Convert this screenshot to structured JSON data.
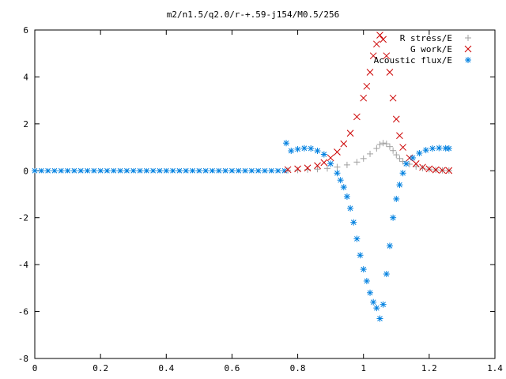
{
  "chart_data": {
    "type": "scatter",
    "title": "m2/n1.5/q2.0/r-+.59-j154/M0.5/256",
    "xlabel": "",
    "ylabel": "",
    "xlim": [
      0,
      1.4
    ],
    "ylim": [
      -8,
      6
    ],
    "x_ticks": [
      "0",
      "0.2",
      "0.4",
      "0.6",
      "0.8",
      "1",
      "1.2",
      "1.4"
    ],
    "y_ticks": [
      "6",
      "4",
      "2",
      "0",
      "-2",
      "-4",
      "-6",
      "-8"
    ],
    "grid": false,
    "legend_placement": "top-right",
    "series": [
      {
        "name": "R stress/E",
        "marker": "plus",
        "color": "#a0a0a0",
        "points": [
          [
            0.77,
            0.02
          ],
          [
            0.8,
            0.03
          ],
          [
            0.83,
            0.05
          ],
          [
            0.86,
            0.07
          ],
          [
            0.89,
            0.1
          ],
          [
            0.92,
            0.16
          ],
          [
            0.95,
            0.25
          ],
          [
            0.98,
            0.37
          ],
          [
            1.0,
            0.52
          ],
          [
            1.02,
            0.72
          ],
          [
            1.04,
            0.95
          ],
          [
            1.05,
            1.12
          ],
          [
            1.06,
            1.18
          ],
          [
            1.07,
            1.15
          ],
          [
            1.08,
            1.03
          ],
          [
            1.09,
            0.86
          ],
          [
            1.1,
            0.68
          ],
          [
            1.11,
            0.52
          ],
          [
            1.12,
            0.4
          ],
          [
            1.14,
            0.28
          ],
          [
            1.16,
            0.18
          ],
          [
            1.18,
            0.11
          ],
          [
            1.2,
            0.07
          ],
          [
            1.22,
            0.04
          ],
          [
            1.24,
            0.02
          ],
          [
            1.26,
            0.01
          ]
        ]
      },
      {
        "name": "G work/E",
        "marker": "x",
        "color": "#cc0000",
        "points": [
          [
            0.77,
            0.05
          ],
          [
            0.8,
            0.08
          ],
          [
            0.83,
            0.12
          ],
          [
            0.86,
            0.22
          ],
          [
            0.88,
            0.35
          ],
          [
            0.9,
            0.55
          ],
          [
            0.92,
            0.8
          ],
          [
            0.94,
            1.15
          ],
          [
            0.96,
            1.6
          ],
          [
            0.98,
            2.3
          ],
          [
            1.0,
            3.1
          ],
          [
            1.01,
            3.6
          ],
          [
            1.02,
            4.2
          ],
          [
            1.03,
            4.9
          ],
          [
            1.04,
            5.4
          ],
          [
            1.05,
            5.78
          ],
          [
            1.06,
            5.6
          ],
          [
            1.07,
            4.9
          ],
          [
            1.08,
            4.2
          ],
          [
            1.09,
            3.1
          ],
          [
            1.1,
            2.2
          ],
          [
            1.11,
            1.5
          ],
          [
            1.12,
            1.0
          ],
          [
            1.14,
            0.55
          ],
          [
            1.16,
            0.3
          ],
          [
            1.18,
            0.15
          ],
          [
            1.2,
            0.08
          ],
          [
            1.22,
            0.04
          ],
          [
            1.24,
            0.02
          ],
          [
            1.26,
            0.01
          ]
        ]
      },
      {
        "name": "Acoustic flux/E",
        "marker": "star",
        "color": "#0080e0",
        "points": [
          [
            0.765,
            1.18
          ],
          [
            0.78,
            0.85
          ],
          [
            0.8,
            0.92
          ],
          [
            0.82,
            0.96
          ],
          [
            0.84,
            0.95
          ],
          [
            0.86,
            0.85
          ],
          [
            0.88,
            0.7
          ],
          [
            0.9,
            0.3
          ],
          [
            0.92,
            -0.1
          ],
          [
            0.93,
            -0.4
          ],
          [
            0.94,
            -0.7
          ],
          [
            0.95,
            -1.1
          ],
          [
            0.96,
            -1.6
          ],
          [
            0.97,
            -2.2
          ],
          [
            0.98,
            -2.9
          ],
          [
            0.99,
            -3.6
          ],
          [
            1.0,
            -4.2
          ],
          [
            1.01,
            -4.7
          ],
          [
            1.02,
            -5.2
          ],
          [
            1.03,
            -5.6
          ],
          [
            1.04,
            -5.85
          ],
          [
            1.05,
            -6.3
          ],
          [
            1.06,
            -5.7
          ],
          [
            1.07,
            -4.4
          ],
          [
            1.08,
            -3.2
          ],
          [
            1.09,
            -2.0
          ],
          [
            1.1,
            -1.2
          ],
          [
            1.11,
            -0.6
          ],
          [
            1.12,
            -0.1
          ],
          [
            1.13,
            0.3
          ],
          [
            1.15,
            0.55
          ],
          [
            1.17,
            0.75
          ],
          [
            1.19,
            0.88
          ],
          [
            1.21,
            0.95
          ],
          [
            1.23,
            0.97
          ],
          [
            1.25,
            0.96
          ],
          [
            1.26,
            0.95
          ]
        ]
      },
      {
        "name": "",
        "marker": "baseline",
        "color": "#0080e0",
        "points": [
          [
            0.0,
            0.0
          ],
          [
            0.02,
            0.0
          ],
          [
            0.04,
            0.0
          ],
          [
            0.06,
            0.0
          ],
          [
            0.08,
            0.0
          ],
          [
            0.1,
            0.0
          ],
          [
            0.12,
            0.0
          ],
          [
            0.14,
            0.0
          ],
          [
            0.16,
            0.0
          ],
          [
            0.18,
            0.0
          ],
          [
            0.2,
            0.0
          ],
          [
            0.22,
            0.0
          ],
          [
            0.24,
            0.0
          ],
          [
            0.26,
            0.0
          ],
          [
            0.28,
            0.0
          ],
          [
            0.3,
            0.0
          ],
          [
            0.32,
            0.0
          ],
          [
            0.34,
            0.0
          ],
          [
            0.36,
            0.0
          ],
          [
            0.38,
            0.0
          ],
          [
            0.4,
            0.0
          ],
          [
            0.42,
            0.0
          ],
          [
            0.44,
            0.0
          ],
          [
            0.46,
            0.0
          ],
          [
            0.48,
            0.0
          ],
          [
            0.5,
            0.0
          ],
          [
            0.52,
            0.0
          ],
          [
            0.54,
            0.0
          ],
          [
            0.56,
            0.0
          ],
          [
            0.58,
            0.0
          ],
          [
            0.6,
            0.0
          ],
          [
            0.62,
            0.0
          ],
          [
            0.64,
            0.0
          ],
          [
            0.66,
            0.0
          ],
          [
            0.68,
            0.0
          ],
          [
            0.7,
            0.0
          ],
          [
            0.72,
            0.0
          ],
          [
            0.74,
            0.0
          ],
          [
            0.76,
            0.0
          ]
        ]
      }
    ]
  }
}
